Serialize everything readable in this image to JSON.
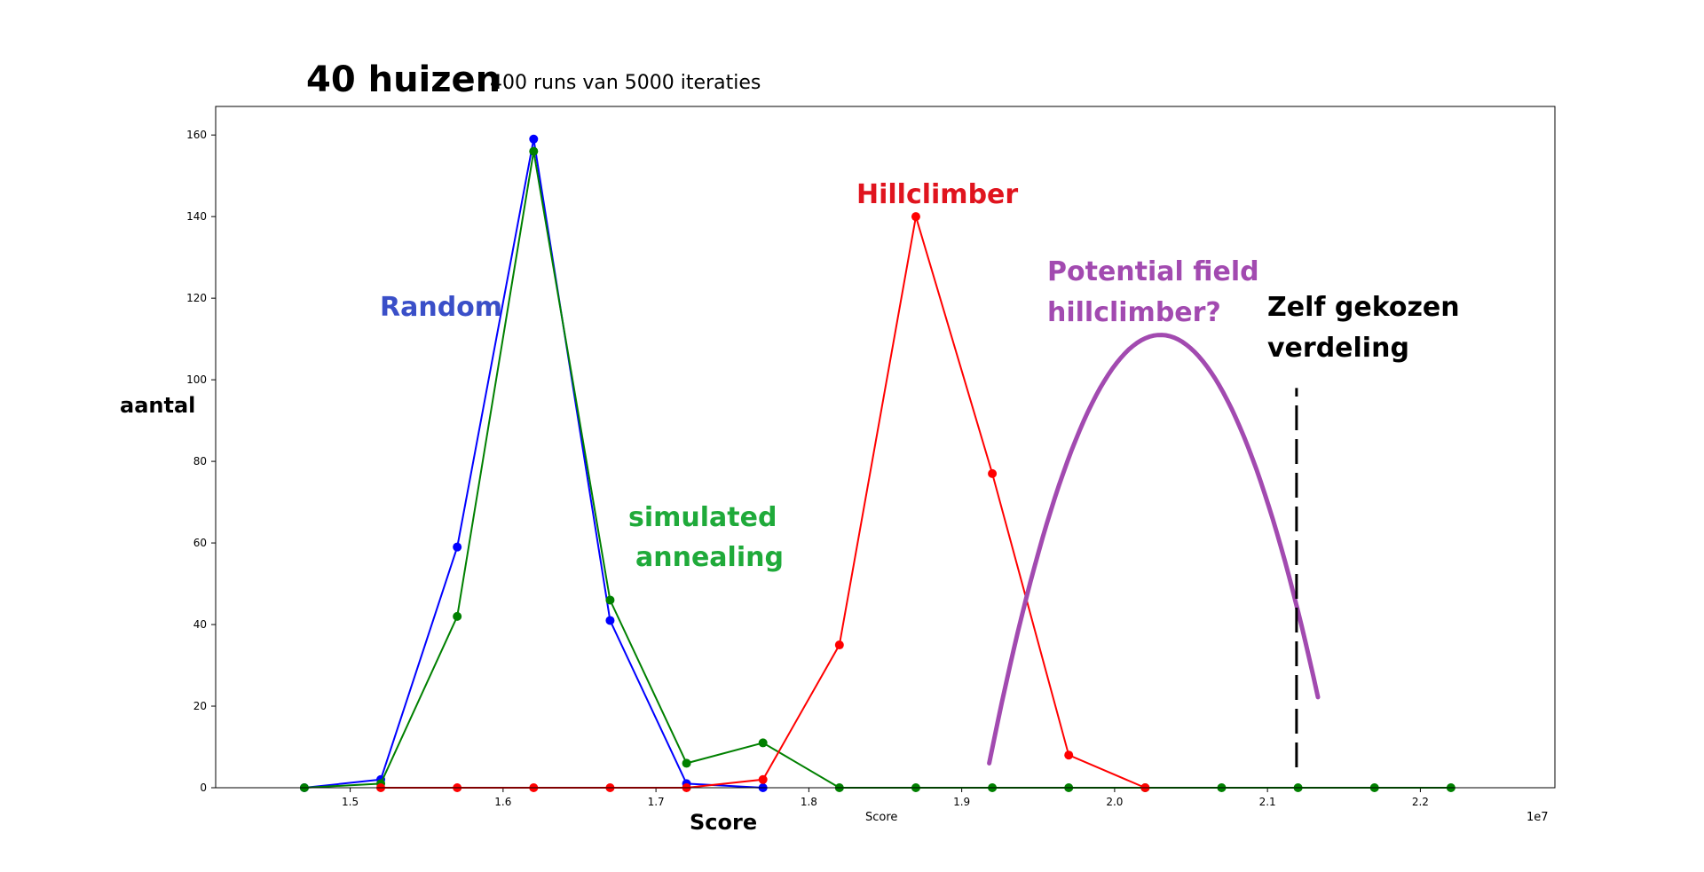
{
  "chart_data": {
    "type": "line",
    "title": "40 huizen",
    "subtitle": "400 runs van 5000 iteraties",
    "xlabel": "Score",
    "xlabel_small": "Score",
    "ylabel": "aantal",
    "x_offset_label": "1e7",
    "xlim": [
      1.412,
      2.288
    ],
    "ylim": [
      0,
      167
    ],
    "x_ticks": [
      1.5,
      1.6,
      1.7,
      1.8,
      1.9,
      2.0,
      2.1,
      2.2
    ],
    "x_tick_labels": [
      "1.5",
      "1.6",
      "1.7",
      "1.8",
      "1.9",
      "2.0",
      "2.1",
      "2.2"
    ],
    "y_ticks": [
      0,
      20,
      40,
      60,
      80,
      100,
      120,
      140,
      160
    ],
    "y_tick_labels": [
      "0",
      "20",
      "40",
      "60",
      "80",
      "100",
      "120",
      "140",
      "160"
    ],
    "grid": false,
    "series": [
      {
        "color": "#0000ff",
        "x": [
          1.47,
          1.52,
          1.57,
          1.62,
          1.67,
          1.72,
          1.77
        ],
        "y": [
          0,
          2,
          59,
          159,
          41,
          1,
          0
        ]
      },
      {
        "color": "#008000",
        "x": [
          1.47,
          1.52,
          1.57,
          1.62,
          1.67,
          1.72,
          1.77,
          1.82,
          1.87,
          1.92,
          1.97,
          2.02,
          2.07,
          2.12,
          2.17,
          2.22
        ],
        "y": [
          0,
          1,
          42,
          156,
          46,
          6,
          11,
          0,
          0,
          0,
          0,
          0,
          0,
          0,
          0,
          0
        ]
      },
      {
        "color": "#ff0000",
        "x": [
          1.52,
          1.57,
          1.62,
          1.67,
          1.72,
          1.77,
          1.82,
          1.87,
          1.92,
          1.97,
          2.02
        ],
        "y": [
          0,
          0,
          0,
          0,
          0,
          2,
          35,
          140,
          77,
          8,
          0
        ]
      }
    ],
    "potential_curve": {
      "color": "#a24ab0",
      "x_start": 1.918,
      "x_end": 2.133,
      "peak_x": 2.03,
      "peak_y": 111,
      "end_y": 6
    },
    "target_line": {
      "x": 2.119,
      "y_from": 5,
      "y_to": 98,
      "color": "#000000"
    },
    "annotations": [
      {
        "text": "Random",
        "color": "#3a4fc8"
      },
      {
        "text": "simulated",
        "color": "#1faa3a"
      },
      {
        "text": "annealing",
        "color": "#1faa3a"
      },
      {
        "text": "Hillclimber",
        "color": "#e0141e"
      },
      {
        "text": "Potential field",
        "color": "#a24ab0"
      },
      {
        "text": "hillclimber?",
        "color": "#a24ab0"
      },
      {
        "text": "Zelf gekozen",
        "color": "#000000"
      },
      {
        "text": "verdeling",
        "color": "#000000"
      }
    ]
  }
}
